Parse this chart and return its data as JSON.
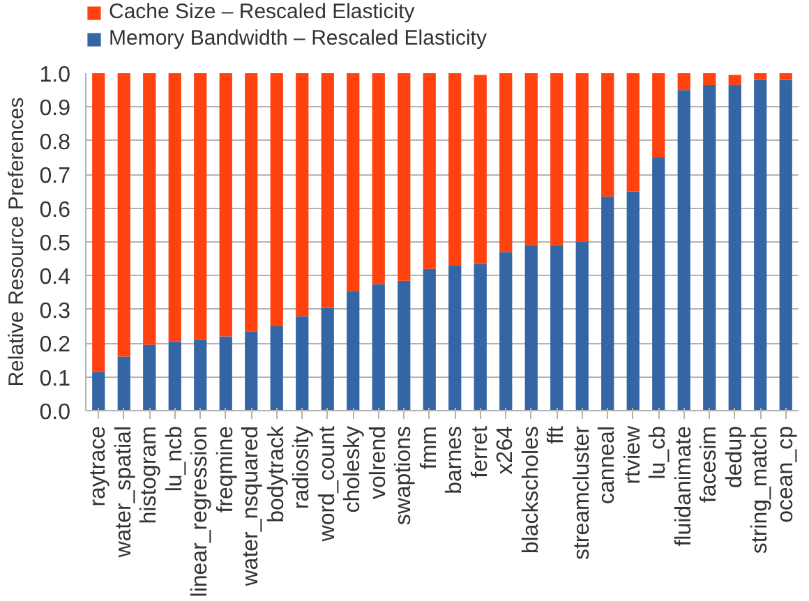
{
  "chart_data": {
    "type": "bar",
    "stacked": true,
    "ylabel": "Relative Resource Preferences",
    "categories": [
      "raytrace",
      "water_spatial",
      "histogram",
      "lu_ncb",
      "linear_regression",
      "freqmine",
      "water_nsquared",
      "bodytrack",
      "radiosity",
      "word_count",
      "cholesky",
      "volrend",
      "swaptions",
      "fmm",
      "barnes",
      "ferret",
      "x264",
      "blackscholes",
      "fft",
      "streamcluster",
      "canneal",
      "rtview",
      "lu_cb",
      "fluidanimate",
      "facesim",
      "dedup",
      "string_match",
      "ocean_cp"
    ],
    "series": [
      {
        "name": "Memory Bandwidth – Rescaled Elasticity",
        "color": "#3465a4",
        "values": [
          0.115,
          0.16,
          0.195,
          0.205,
          0.21,
          0.22,
          0.235,
          0.25,
          0.28,
          0.305,
          0.355,
          0.375,
          0.385,
          0.42,
          0.43,
          0.435,
          0.47,
          0.49,
          0.49,
          0.5,
          0.635,
          0.65,
          0.75,
          0.95,
          0.965,
          0.965,
          0.98,
          0.98
        ]
      },
      {
        "name": "Cache Size – Rescaled Elasticity",
        "color": "#ff420e",
        "values": [
          0.885,
          0.84,
          0.805,
          0.795,
          0.79,
          0.78,
          0.765,
          0.75,
          0.72,
          0.695,
          0.645,
          0.625,
          0.615,
          0.58,
          0.57,
          0.56,
          0.53,
          0.51,
          0.51,
          0.5,
          0.365,
          0.35,
          0.25,
          0.05,
          0.035,
          0.03,
          0.02,
          0.02
        ]
      }
    ],
    "ylim": [
      0,
      1
    ],
    "yticks": [
      {
        "value": 0,
        "label": "0.0"
      },
      {
        "value": 0.1,
        "label": "0.1"
      },
      {
        "value": 0.2,
        "label": "0.2"
      },
      {
        "value": 0.3,
        "label": "0.3"
      },
      {
        "value": 0.4,
        "label": "0.4"
      },
      {
        "value": 0.5,
        "label": "0.5"
      },
      {
        "value": 0.6,
        "label": "0.6"
      },
      {
        "value": 0.7,
        "label": "0.7"
      },
      {
        "value": 0.8,
        "label": "0.8"
      },
      {
        "value": 0.9,
        "label": "0.9"
      },
      {
        "value": 1,
        "label": "1.0"
      }
    ],
    "grid": "y",
    "legend": "top left"
  }
}
